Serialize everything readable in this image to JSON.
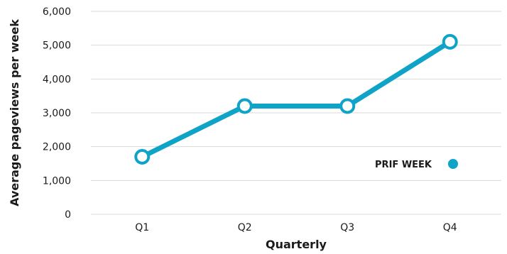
{
  "chart_data": {
    "type": "line",
    "title": "",
    "xlabel": "Quarterly",
    "ylabel": "Average pageviews per week",
    "categories": [
      "Q1",
      "Q2",
      "Q3",
      "Q4"
    ],
    "series": [
      {
        "name": "PRIF WEEK",
        "values": [
          1700,
          3200,
          3200,
          5100
        ]
      }
    ],
    "ylim": [
      0,
      6000
    ],
    "yticks": [
      0,
      1000,
      2000,
      3000,
      4000,
      5000,
      6000
    ],
    "ytick_labels": [
      "0",
      "1,000",
      "2,000",
      "3,000",
      "4,000",
      "5,000",
      "6,000"
    ],
    "grid": "horizontal",
    "legend_position": "right",
    "colors": {
      "series": "#0fa3c8",
      "grid": "#d9d9d9",
      "text": "#1a1a1a"
    }
  }
}
